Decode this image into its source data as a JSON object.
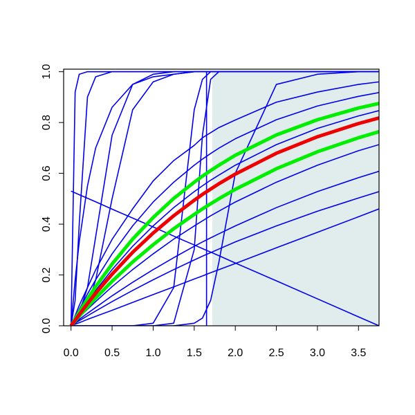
{
  "chart_data": {
    "type": "line",
    "x": [
      0,
      0.05,
      0.1,
      0.2,
      0.3,
      0.5,
      0.75,
      1.0,
      1.25,
      1.5,
      1.6,
      1.7,
      1.8,
      2.0,
      2.5,
      3.0,
      3.5,
      3.75
    ],
    "shaded_region": {
      "xlim": [
        1.72,
        3.75
      ],
      "ylim": [
        0,
        1
      ],
      "color": "#e1ecec"
    },
    "vertical_lines": [
      {
        "x": 1.65,
        "ylim": [
          0,
          1
        ],
        "color": "#0000ee"
      }
    ],
    "series": [
      {
        "color": "#0000ee",
        "values": [
          0,
          0.92,
          0.99,
          1,
          1,
          1,
          1,
          1,
          1,
          1,
          1,
          1,
          1,
          1,
          1,
          1,
          1,
          1
        ]
      },
      {
        "color": "#0000ee",
        "values": [
          0,
          0.1,
          0.4,
          0.9,
          0.98,
          1,
          1,
          1,
          1,
          1,
          1,
          1,
          1,
          1,
          1,
          1,
          1,
          1
        ]
      },
      {
        "color": "#0000ee",
        "values": [
          0,
          0.18,
          0.33,
          0.55,
          0.7,
          0.86,
          0.95,
          0.98,
          0.99,
          1,
          1,
          1,
          1,
          1,
          1,
          1,
          1,
          1
        ]
      },
      {
        "color": "#0000ee",
        "values": [
          0,
          0.02,
          0.05,
          0.15,
          0.35,
          0.75,
          0.95,
          0.99,
          1,
          1,
          1,
          1,
          1,
          1,
          1,
          1,
          1,
          1
        ]
      },
      {
        "color": "#0000ee",
        "values": [
          0,
          0.01,
          0.03,
          0.08,
          0.18,
          0.5,
          0.85,
          0.96,
          0.99,
          1,
          1,
          1,
          1,
          1,
          1,
          1,
          1,
          1
        ]
      },
      {
        "color": "#0000ee",
        "values": [
          0,
          0,
          0,
          0,
          0,
          0,
          0,
          0.01,
          0.15,
          0.85,
          0.97,
          1,
          1,
          1,
          1,
          1,
          1,
          1
        ]
      },
      {
        "color": "#0000ee",
        "values": [
          0,
          0,
          0,
          0,
          0,
          0,
          0,
          0,
          0.01,
          0.3,
          0.75,
          0.97,
          1,
          1,
          1,
          1,
          1,
          1
        ]
      },
      {
        "color": "#0000ee",
        "values": [
          0,
          0,
          0,
          0,
          0,
          0,
          0,
          0,
          0,
          0.01,
          0.03,
          0.1,
          0.25,
          0.6,
          0.95,
          0.99,
          1,
          1
        ]
      },
      {
        "color": "#0000ee",
        "values": [
          0,
          0.04,
          0.08,
          0.15,
          0.22,
          0.34,
          0.46,
          0.57,
          0.65,
          0.71,
          0.74,
          0.76,
          0.78,
          0.81,
          0.88,
          0.92,
          0.95,
          0.96
        ]
      },
      {
        "color": "#0000ee",
        "values": [
          0,
          0.033,
          0.065,
          0.125,
          0.181,
          0.283,
          0.393,
          0.487,
          0.565,
          0.632,
          0.656,
          0.678,
          0.699,
          0.736,
          0.811,
          0.865,
          0.903,
          0.918
        ]
      },
      {
        "color": "#0000ee",
        "values": [
          0,
          0.025,
          0.049,
          0.095,
          0.139,
          0.221,
          0.313,
          0.393,
          0.465,
          0.528,
          0.551,
          0.573,
          0.593,
          0.632,
          0.713,
          0.777,
          0.826,
          0.847
        ]
      },
      {
        "color": "#0000ee",
        "values": [
          0,
          0.017,
          0.033,
          0.065,
          0.095,
          0.154,
          0.221,
          0.283,
          0.341,
          0.393,
          0.413,
          0.433,
          0.451,
          0.487,
          0.565,
          0.632,
          0.689,
          0.713
        ]
      },
      {
        "color": "#0000ee",
        "values": [
          0,
          0.012,
          0.025,
          0.049,
          0.072,
          0.118,
          0.171,
          0.221,
          0.268,
          0.313,
          0.33,
          0.346,
          0.362,
          0.393,
          0.465,
          0.528,
          0.583,
          0.608
        ]
      },
      {
        "color": "#0000ee",
        "values": [
          0,
          0.01,
          0.02,
          0.039,
          0.058,
          0.095,
          0.139,
          0.181,
          0.221,
          0.259,
          0.274,
          0.288,
          0.302,
          0.33,
          0.393,
          0.451,
          0.503,
          0.528
        ]
      },
      {
        "color": "#0000ee",
        "values": [
          0,
          0.006,
          0.012,
          0.025,
          0.037,
          0.061,
          0.092,
          0.123,
          0.153,
          0.184,
          0.196,
          0.209,
          0.221,
          0.245,
          0.307,
          0.368,
          0.429,
          0.46
        ]
      },
      {
        "color": "#0000ee",
        "values": [
          0.53,
          0.523,
          0.516,
          0.502,
          0.488,
          0.459,
          0.424,
          0.389,
          0.353,
          0.318,
          0.304,
          0.29,
          0.276,
          0.247,
          0.177,
          0.106,
          0.035,
          0.0
        ]
      },
      {
        "color": "#00ee00",
        "width": 5,
        "values": [
          0,
          0.027,
          0.054,
          0.105,
          0.154,
          0.243,
          0.341,
          0.426,
          0.501,
          0.565,
          0.589,
          0.611,
          0.632,
          0.671,
          0.751,
          0.811,
          0.857,
          0.875
        ]
      },
      {
        "color": "#00ee00",
        "width": 5,
        "values": [
          0,
          0.019,
          0.038,
          0.074,
          0.109,
          0.175,
          0.251,
          0.319,
          0.382,
          0.438,
          0.46,
          0.48,
          0.5,
          0.537,
          0.618,
          0.685,
          0.74,
          0.764
        ]
      },
      {
        "color": "#ee0000",
        "width": 5,
        "values": [
          0,
          0.022,
          0.044,
          0.087,
          0.128,
          0.203,
          0.289,
          0.365,
          0.433,
          0.494,
          0.517,
          0.538,
          0.559,
          0.597,
          0.679,
          0.744,
          0.796,
          0.818
        ]
      }
    ],
    "xlim": [
      -0.09,
      3.75
    ],
    "ylim": [
      0,
      1.01
    ],
    "xticks": [
      {
        "value": 0,
        "label": "0.0"
      },
      {
        "value": 0.5,
        "label": "0.5"
      },
      {
        "value": 1,
        "label": "1.0"
      },
      {
        "value": 1.5,
        "label": "1.5"
      },
      {
        "value": 2,
        "label": "2.0"
      },
      {
        "value": 2.5,
        "label": "2.5"
      },
      {
        "value": 3,
        "label": "3.0"
      },
      {
        "value": 3.5,
        "label": "3.5"
      }
    ],
    "yticks": [
      {
        "value": 0,
        "label": "0.0"
      },
      {
        "value": 0.2,
        "label": "0.2"
      },
      {
        "value": 0.4,
        "label": "0.4"
      },
      {
        "value": 0.6,
        "label": "0.6"
      },
      {
        "value": 0.8,
        "label": "0.8"
      },
      {
        "value": 1,
        "label": "1.0"
      }
    ]
  }
}
